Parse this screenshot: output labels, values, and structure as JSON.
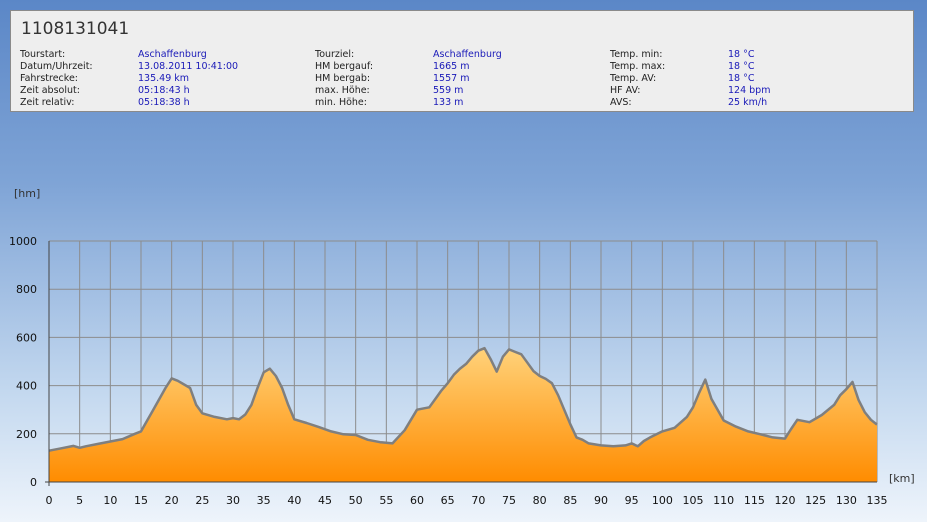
{
  "tour": {
    "title": "1108131041",
    "fields": [
      {
        "label": "Tourstart:",
        "value": "Aschaffenburg"
      },
      {
        "label": "Datum/Uhrzeit:",
        "value": "13.08.2011 10:41:00"
      },
      {
        "label": "Fahrstrecke:",
        "value": "135.49 km"
      },
      {
        "label": "Zeit absolut:",
        "value": "05:18:43 h"
      },
      {
        "label": "Zeit relativ:",
        "value": "05:18:38 h"
      },
      {
        "label": "Tourziel:",
        "value": "Aschaffenburg"
      },
      {
        "label": "HM bergauf:",
        "value": "1665 m"
      },
      {
        "label": "HM bergab:",
        "value": "1557 m"
      },
      {
        "label": "max. Höhe:",
        "value": "559 m"
      },
      {
        "label": "min. Höhe:",
        "value": "133 m"
      },
      {
        "label": "Temp. min:",
        "value": "18 °C"
      },
      {
        "label": "Temp. max:",
        "value": "18 °C"
      },
      {
        "label": "Temp. AV:",
        "value": "18 °C"
      },
      {
        "label": "HF AV:",
        "value": "124 bpm"
      },
      {
        "label": "AVS:",
        "value": "25 km/h"
      }
    ]
  },
  "colors": {
    "line": "#7f7f7f",
    "fill_top": "#ffd27a",
    "fill_bottom": "#ff8c00",
    "grid": "#8c8c8c",
    "value_text": "#1a1ab8"
  },
  "chart_data": {
    "type": "area",
    "xlabel": "[km]",
    "ylabel": "[hm]",
    "xlim": [
      0,
      135
    ],
    "ylim": [
      0,
      1000
    ],
    "x_ticks": [
      0,
      5,
      10,
      15,
      20,
      25,
      30,
      35,
      40,
      45,
      50,
      55,
      60,
      65,
      70,
      75,
      80,
      85,
      90,
      95,
      100,
      105,
      110,
      115,
      120,
      125,
      130,
      135
    ],
    "y_ticks": [
      0,
      200,
      400,
      600,
      800,
      1000
    ],
    "grid": true,
    "x": [
      0,
      2,
      4,
      5,
      6,
      8,
      10,
      12,
      14,
      15,
      17,
      19,
      20,
      21,
      23,
      24,
      25,
      27,
      29,
      30,
      31,
      32,
      33,
      34,
      35,
      36,
      37,
      38,
      39,
      40,
      42,
      44,
      46,
      48,
      50,
      52,
      54,
      56,
      58,
      60,
      62,
      63,
      64,
      65,
      66,
      67,
      68,
      69,
      70,
      71,
      72,
      73,
      74,
      75,
      76,
      77,
      78,
      79,
      80,
      81,
      82,
      83,
      84,
      85,
      86,
      87,
      88,
      90,
      92,
      94,
      95,
      96,
      97,
      98,
      100,
      102,
      104,
      105,
      106,
      107,
      108,
      110,
      112,
      114,
      116,
      118,
      120,
      121,
      122,
      124,
      126,
      128,
      129,
      130,
      131,
      132,
      133,
      134,
      135
    ],
    "values": [
      130,
      140,
      150,
      142,
      148,
      158,
      168,
      178,
      200,
      210,
      300,
      390,
      430,
      420,
      390,
      320,
      285,
      270,
      260,
      265,
      260,
      280,
      320,
      390,
      455,
      470,
      440,
      390,
      320,
      260,
      245,
      228,
      210,
      198,
      195,
      175,
      165,
      160,
      215,
      300,
      310,
      345,
      380,
      410,
      445,
      470,
      490,
      520,
      545,
      555,
      510,
      458,
      520,
      550,
      540,
      530,
      495,
      460,
      440,
      428,
      410,
      360,
      300,
      240,
      185,
      175,
      160,
      152,
      148,
      152,
      160,
      148,
      170,
      185,
      210,
      225,
      270,
      310,
      370,
      425,
      345,
      255,
      230,
      210,
      198,
      185,
      180,
      220,
      258,
      248,
      278,
      320,
      360,
      385,
      415,
      340,
      290,
      258,
      238
    ]
  }
}
